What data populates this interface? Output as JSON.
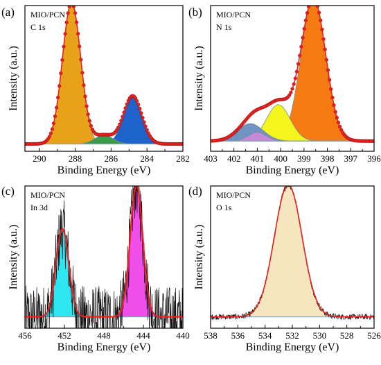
{
  "colors": {
    "envelope": "#e8211f",
    "points": "#d81e1e",
    "axis": "#000000",
    "background": "#8aa5b4"
  },
  "chart_data": [
    {
      "type": "area",
      "panel_label": "(a)",
      "annotations": [
        "MIO/PCN",
        "C 1s"
      ],
      "xlabel": "Binding Energy (eV)",
      "ylabel": "Intensity (a.u.)",
      "xlim": [
        290.8,
        282.0
      ],
      "xticks": [
        290,
        288,
        286,
        284,
        282
      ],
      "ylim": [
        0,
        1
      ],
      "grid": false,
      "baseline": 0.05,
      "peaks": [
        {
          "center": 288.2,
          "height": 0.97,
          "fwhm": 1.2,
          "color": "#e8a21a"
        },
        {
          "center": 286.4,
          "height": 0.06,
          "fwhm": 1.2,
          "color": "#3d9c4a"
        },
        {
          "center": 284.8,
          "height": 0.33,
          "fwhm": 1.2,
          "color": "#1d63c9"
        }
      ],
      "noise": 0
    },
    {
      "type": "area",
      "panel_label": "(b)",
      "annotations": [
        "MIO/PCN",
        "N 1s"
      ],
      "xlabel": "Binding Energy (eV)",
      "ylabel": "Intensity (a.u.)",
      "xlim": [
        403.0,
        396.0
      ],
      "xticks": [
        403,
        402,
        401,
        400,
        399,
        398,
        397,
        396
      ],
      "ylim": [
        0,
        1
      ],
      "grid": false,
      "baseline": 0.07,
      "peaks": [
        {
          "center": 398.6,
          "height": 0.98,
          "fwhm": 1.25,
          "color": "#f57a12"
        },
        {
          "center": 400.1,
          "height": 0.25,
          "fwhm": 1.2,
          "color": "#f5f51e"
        },
        {
          "center": 401.3,
          "height": 0.12,
          "fwhm": 1.3,
          "color": "#6f93c2"
        },
        {
          "center": 401.0,
          "height": 0.06,
          "fwhm": 0.9,
          "color": "#c58ad6"
        }
      ],
      "noise": 0
    },
    {
      "type": "area",
      "panel_label": "(c)",
      "annotations": [
        "MIO/PCN",
        "In 3d"
      ],
      "xlabel": "Binding Energy (eV)",
      "ylabel": "Intensity (a.u.)",
      "xlim": [
        456.0,
        440.0
      ],
      "xticks": [
        456,
        452,
        448,
        444,
        440
      ],
      "ylim": [
        0,
        1
      ],
      "grid": false,
      "baseline": 0.08,
      "peaks": [
        {
          "center": 452.2,
          "height": 0.62,
          "fwhm": 1.5,
          "color": "#2fe6f0"
        },
        {
          "center": 444.7,
          "height": 0.93,
          "fwhm": 1.5,
          "color": "#ef4fe8"
        }
      ],
      "noise": 0.22
    },
    {
      "type": "area",
      "panel_label": "(d)",
      "annotations": [
        "MIO/PCN",
        "O 1s"
      ],
      "xlabel": "Binding Energy (eV)",
      "ylabel": "Intensity (a.u.)",
      "xlim": [
        538.0,
        526.0
      ],
      "xticks": [
        538,
        536,
        534,
        532,
        530,
        528,
        526
      ],
      "ylim": [
        0,
        1
      ],
      "grid": false,
      "baseline": 0.08,
      "peaks": [
        {
          "center": 532.3,
          "height": 0.93,
          "fwhm": 2.4,
          "color": "#f5e6c0"
        }
      ],
      "noise": 0.02
    }
  ]
}
